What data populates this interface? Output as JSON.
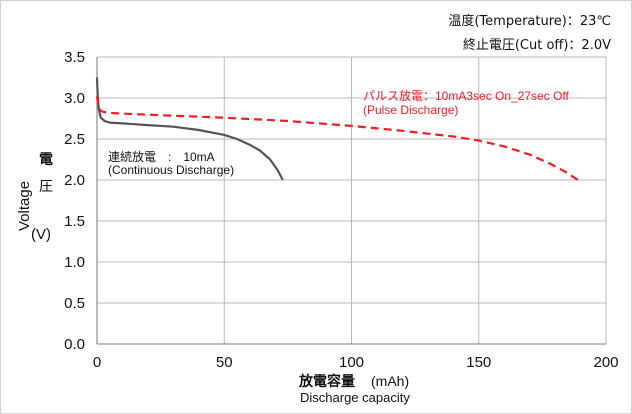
{
  "conditions": {
    "temperature": "温度(Temperature)：23℃",
    "cutoff": "終止電圧(Cut off)：2.0V"
  },
  "chart_data": {
    "type": "line",
    "xlim": [
      0,
      200
    ],
    "ylim": [
      0.0,
      3.5
    ],
    "x_ticks": [
      "0",
      "50",
      "100",
      "150",
      "200"
    ],
    "y_ticks": [
      "0.0",
      "0.5",
      "1.0",
      "1.5",
      "2.0",
      "2.5",
      "3.0",
      "3.5"
    ],
    "grid": true,
    "xlabel": {
      "main": "放電容量",
      "unit": "(mAh)",
      "sub": "Discharge capacity"
    },
    "ylabel": {
      "latin": "Voltage",
      "kanji": [
        "電",
        "圧"
      ],
      "unit": "(V)"
    },
    "series": [
      {
        "name": "連続放電　:　10mA\n(Continuous Discharge)",
        "color": "#555555",
        "dash": false,
        "x": [
          0,
          0.3,
          0.8,
          1.5,
          3,
          5,
          10,
          20,
          30,
          40,
          50,
          55,
          60,
          64,
          68,
          71,
          73
        ],
        "y": [
          3.25,
          3.0,
          2.85,
          2.76,
          2.72,
          2.7,
          2.69,
          2.67,
          2.65,
          2.61,
          2.55,
          2.5,
          2.43,
          2.36,
          2.25,
          2.12,
          2.0
        ]
      },
      {
        "name": "パルス放電：10mA3sec On_27sec Off\n(Pulse Discharge)",
        "color": "#ee1c25",
        "dash": true,
        "x": [
          0,
          0.5,
          1.5,
          4,
          10,
          25,
          50,
          75,
          100,
          120,
          140,
          150,
          160,
          170,
          178,
          184,
          189
        ],
        "y": [
          3.02,
          2.9,
          2.84,
          2.82,
          2.81,
          2.79,
          2.76,
          2.72,
          2.66,
          2.6,
          2.53,
          2.48,
          2.41,
          2.31,
          2.2,
          2.1,
          2.0
        ]
      }
    ]
  }
}
